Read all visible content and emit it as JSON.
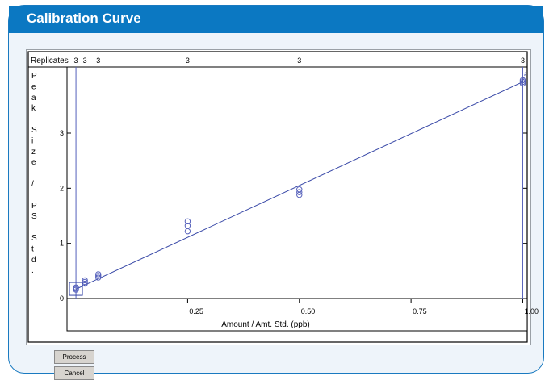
{
  "card": {
    "title": "Calibration Curve"
  },
  "toolbar": {
    "process_label": "Process",
    "cancel_label": "Cancel"
  },
  "chart_data": {
    "type": "scatter",
    "ylabel_letters": [
      "P",
      "e",
      "a",
      "k",
      "",
      "S",
      "i",
      "z",
      "e",
      "",
      "/",
      "",
      "P",
      "S",
      "",
      "S",
      "t",
      "d",
      "."
    ],
    "xlabel": "Amount / Amt. Std. (ppb)",
    "replicates_label": "Replicates",
    "xlim": [
      -0.02,
      1.01
    ],
    "ylim": [
      0,
      4.2
    ],
    "x_ticks": [
      "0.25",
      "0.50",
      "0.75",
      "1.00"
    ],
    "x_tick_values": [
      0.25,
      0.5,
      0.75,
      1.0
    ],
    "y_ticks": [
      "0",
      "1",
      "2",
      "3"
    ],
    "y_tick_values": [
      0,
      1,
      2,
      3
    ],
    "replicates": [
      {
        "x": 0.0,
        "n": "3"
      },
      {
        "x": 0.02,
        "n": "3"
      },
      {
        "x": 0.05,
        "n": "3"
      },
      {
        "x": 0.25,
        "n": "3"
      },
      {
        "x": 0.5,
        "n": "3"
      },
      {
        "x": 1.0,
        "n": "3"
      }
    ],
    "points": [
      {
        "x": 0.0,
        "y": 0.16
      },
      {
        "x": 0.0,
        "y": 0.18
      },
      {
        "x": 0.0,
        "y": 0.2
      },
      {
        "x": 0.02,
        "y": 0.27
      },
      {
        "x": 0.02,
        "y": 0.3
      },
      {
        "x": 0.02,
        "y": 0.33
      },
      {
        "x": 0.05,
        "y": 0.38
      },
      {
        "x": 0.05,
        "y": 0.41
      },
      {
        "x": 0.05,
        "y": 0.44
      },
      {
        "x": 0.25,
        "y": 1.22
      },
      {
        "x": 0.25,
        "y": 1.32
      },
      {
        "x": 0.25,
        "y": 1.4
      },
      {
        "x": 0.5,
        "y": 1.88
      },
      {
        "x": 0.5,
        "y": 1.93
      },
      {
        "x": 0.5,
        "y": 1.98
      },
      {
        "x": 1.0,
        "y": 3.9
      },
      {
        "x": 1.0,
        "y": 3.93
      },
      {
        "x": 1.0,
        "y": 3.96
      }
    ],
    "fit_line": {
      "x0": 0.0,
      "y0": 0.17,
      "x1": 1.0,
      "y1": 3.93
    },
    "colors": {
      "series": "#5560bb",
      "fit": "#3a4aa8",
      "axes": "#000000"
    }
  }
}
